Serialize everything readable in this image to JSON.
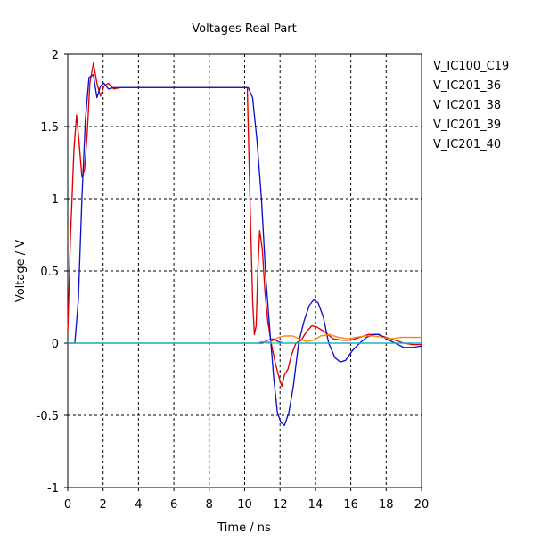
{
  "chart_data": {
    "type": "line",
    "title": "Voltages Real Part",
    "xlabel": "Time / ns",
    "ylabel": "Voltage / V",
    "xlim": [
      0,
      20
    ],
    "ylim": [
      -1,
      2
    ],
    "xticks": [
      0,
      2,
      4,
      6,
      8,
      10,
      12,
      14,
      16,
      18,
      20
    ],
    "yticks": [
      -1,
      -0.5,
      0,
      0.5,
      1,
      1.5,
      2
    ],
    "xtick_labels": [
      "0",
      "2",
      "4",
      "6",
      "8",
      "10",
      "12",
      "14",
      "16",
      "18",
      "20"
    ],
    "ytick_labels": [
      "-1",
      "-0.5",
      "0",
      "0.5",
      "1",
      "1.5",
      "2"
    ],
    "grid": true,
    "legend_position": "right",
    "series": [
      {
        "name": "V_IC100_C19",
        "color": "#e00000",
        "points": [
          [
            0,
            0.08
          ],
          [
            0.15,
            0.72
          ],
          [
            0.35,
            1.34
          ],
          [
            0.5,
            1.58
          ],
          [
            0.65,
            1.38
          ],
          [
            0.8,
            1.15
          ],
          [
            0.95,
            1.2
          ],
          [
            1.1,
            1.45
          ],
          [
            1.25,
            1.8
          ],
          [
            1.45,
            1.94
          ],
          [
            1.65,
            1.8
          ],
          [
            1.85,
            1.71
          ],
          [
            2.05,
            1.78
          ],
          [
            2.3,
            1.8
          ],
          [
            2.6,
            1.76
          ],
          [
            3.0,
            1.77
          ],
          [
            5,
            1.77
          ],
          [
            8,
            1.77
          ],
          [
            10.15,
            1.77
          ],
          [
            10.3,
            1.0
          ],
          [
            10.45,
            0.3
          ],
          [
            10.55,
            0.06
          ],
          [
            10.65,
            0.12
          ],
          [
            10.75,
            0.52
          ],
          [
            10.85,
            0.78
          ],
          [
            11.0,
            0.65
          ],
          [
            11.15,
            0.35
          ],
          [
            11.3,
            0.16
          ],
          [
            11.5,
            0.0
          ],
          [
            11.7,
            -0.12
          ],
          [
            11.9,
            -0.22
          ],
          [
            12.1,
            -0.3
          ],
          [
            12.25,
            -0.22
          ],
          [
            12.45,
            -0.18
          ],
          [
            12.65,
            -0.08
          ],
          [
            12.9,
            0.0
          ],
          [
            13.2,
            0.02
          ],
          [
            13.5,
            0.08
          ],
          [
            13.8,
            0.12
          ],
          [
            14.1,
            0.11
          ],
          [
            14.5,
            0.08
          ],
          [
            15.0,
            0.03
          ],
          [
            15.5,
            0.02
          ],
          [
            16.0,
            0.02
          ],
          [
            16.5,
            0.04
          ],
          [
            17.0,
            0.06
          ],
          [
            17.5,
            0.06
          ],
          [
            18.0,
            0.04
          ],
          [
            18.5,
            0.02
          ],
          [
            19.0,
            0.0
          ],
          [
            19.5,
            -0.01
          ],
          [
            20,
            -0.01
          ]
        ]
      },
      {
        "name": "V_IC201_36",
        "color": "#1010cc",
        "points": [
          [
            0,
            0.0
          ],
          [
            0.4,
            0.0
          ],
          [
            0.6,
            0.3
          ],
          [
            0.8,
            1.0
          ],
          [
            1.0,
            1.55
          ],
          [
            1.2,
            1.84
          ],
          [
            1.45,
            1.86
          ],
          [
            1.65,
            1.7
          ],
          [
            1.85,
            1.78
          ],
          [
            2.05,
            1.8
          ],
          [
            2.3,
            1.76
          ],
          [
            2.6,
            1.77
          ],
          [
            3.0,
            1.77
          ],
          [
            5,
            1.77
          ],
          [
            8,
            1.77
          ],
          [
            10.2,
            1.77
          ],
          [
            10.45,
            1.7
          ],
          [
            10.7,
            1.4
          ],
          [
            10.95,
            1.0
          ],
          [
            11.2,
            0.45
          ],
          [
            11.45,
            0.05
          ],
          [
            11.65,
            -0.25
          ],
          [
            11.85,
            -0.48
          ],
          [
            12.05,
            -0.55
          ],
          [
            12.25,
            -0.57
          ],
          [
            12.5,
            -0.48
          ],
          [
            12.75,
            -0.3
          ],
          [
            13.05,
            0.0
          ],
          [
            13.35,
            0.15
          ],
          [
            13.65,
            0.26
          ],
          [
            13.9,
            0.3
          ],
          [
            14.15,
            0.28
          ],
          [
            14.45,
            0.18
          ],
          [
            14.75,
            0.0
          ],
          [
            15.1,
            -0.1
          ],
          [
            15.4,
            -0.13
          ],
          [
            15.7,
            -0.12
          ],
          [
            16.1,
            -0.05
          ],
          [
            16.5,
            0.0
          ],
          [
            16.9,
            0.04
          ],
          [
            17.3,
            0.06
          ],
          [
            17.6,
            0.06
          ],
          [
            18.0,
            0.03
          ],
          [
            18.5,
            0.0
          ],
          [
            19.0,
            -0.03
          ],
          [
            19.5,
            -0.03
          ],
          [
            20,
            -0.02
          ]
        ]
      },
      {
        "name": "V_IC201_38",
        "color": "#ff8000",
        "points": [
          [
            0,
            0.0
          ],
          [
            10.5,
            0.0
          ],
          [
            11.0,
            0.0
          ],
          [
            11.5,
            0.01
          ],
          [
            11.9,
            0.04
          ],
          [
            12.3,
            0.05
          ],
          [
            12.7,
            0.05
          ],
          [
            13.1,
            0.03
          ],
          [
            13.5,
            0.01
          ],
          [
            13.9,
            0.02
          ],
          [
            14.3,
            0.05
          ],
          [
            14.8,
            0.06
          ],
          [
            15.3,
            0.04
          ],
          [
            15.8,
            0.03
          ],
          [
            16.3,
            0.04
          ],
          [
            16.8,
            0.05
          ],
          [
            17.3,
            0.05
          ],
          [
            17.8,
            0.04
          ],
          [
            18.3,
            0.03
          ],
          [
            18.8,
            0.04
          ],
          [
            19.3,
            0.04
          ],
          [
            20,
            0.04
          ]
        ]
      },
      {
        "name": "V_IC201_39",
        "color": "#9900cc",
        "points": [
          [
            0,
            0.0
          ],
          [
            10.6,
            0.0
          ],
          [
            11.0,
            0.0
          ],
          [
            11.3,
            0.02
          ],
          [
            11.6,
            0.03
          ],
          [
            11.9,
            0.01
          ],
          [
            12.2,
            0.0
          ],
          [
            13,
            0.0
          ],
          [
            20,
            0.0
          ]
        ]
      },
      {
        "name": "V_IC201_40",
        "color": "#00cccc",
        "points": [
          [
            0,
            0.0
          ],
          [
            10.7,
            0.0
          ],
          [
            11.0,
            0.01
          ],
          [
            11.3,
            0.0
          ],
          [
            12,
            0.0
          ],
          [
            20,
            0.0
          ]
        ]
      }
    ]
  }
}
